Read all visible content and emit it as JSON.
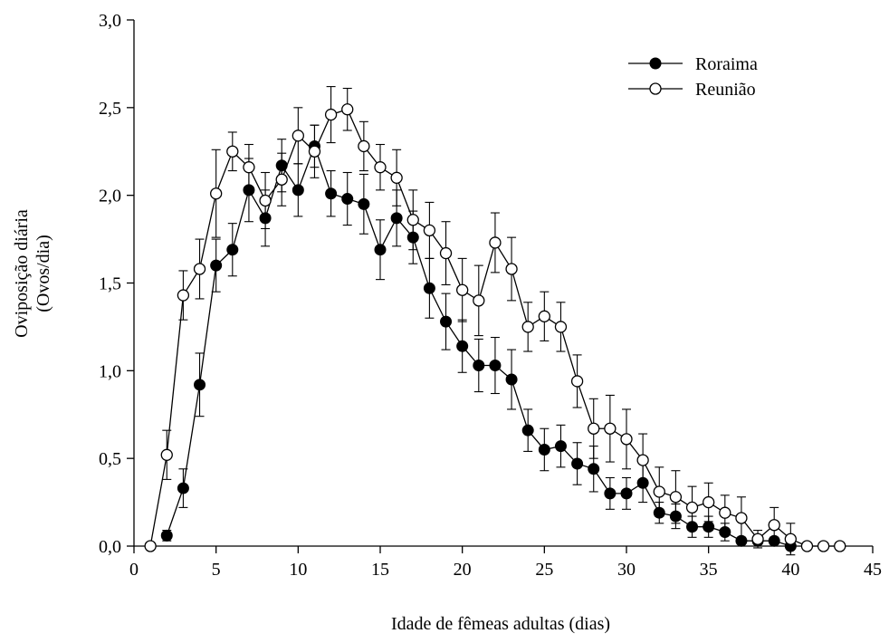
{
  "chart_data": {
    "type": "line",
    "title": "",
    "xlabel": "Idade de fêmeas adultas (dias)",
    "ylabel_line1": "Oviposição diária",
    "ylabel_line2": "(Ovos/dia)",
    "xlim": [
      0,
      45
    ],
    "ylim": [
      0,
      3.0
    ],
    "x_ticks": [
      0,
      5,
      10,
      15,
      20,
      25,
      30,
      35,
      40,
      45
    ],
    "x_tick_labels": [
      "0",
      "5",
      "10",
      "15",
      "20",
      "25",
      "30",
      "35",
      "40",
      "45"
    ],
    "y_ticks": [
      0,
      0.5,
      1.0,
      1.5,
      2.0,
      2.5,
      3.0
    ],
    "y_tick_labels": [
      "0,0",
      "0,5",
      "1,0",
      "1,5",
      "2,0",
      "2,5",
      "3,0"
    ],
    "grid": false,
    "legend_position": "top-right",
    "series": [
      {
        "name": "Roraima",
        "marker": "filled-circle",
        "x": [
          2,
          3,
          4,
          5,
          6,
          7,
          8,
          9,
          10,
          11,
          12,
          13,
          14,
          15,
          16,
          17,
          18,
          19,
          20,
          21,
          22,
          23,
          24,
          25,
          26,
          27,
          28,
          29,
          30,
          31,
          32,
          33,
          34,
          35,
          36,
          37,
          38,
          39,
          40
        ],
        "y": [
          0.06,
          0.33,
          0.92,
          1.6,
          1.69,
          2.03,
          1.87,
          2.17,
          2.03,
          2.28,
          2.01,
          1.98,
          1.95,
          1.69,
          1.87,
          1.76,
          1.47,
          1.28,
          1.14,
          1.03,
          1.03,
          0.95,
          0.66,
          0.55,
          0.57,
          0.47,
          0.44,
          0.3,
          0.3,
          0.36,
          0.19,
          0.17,
          0.11,
          0.11,
          0.08,
          0.03,
          0.03,
          0.03,
          0.0
        ],
        "err": [
          0.03,
          0.11,
          0.18,
          0.15,
          0.15,
          0.18,
          0.16,
          0.15,
          0.15,
          0.12,
          0.13,
          0.15,
          0.17,
          0.17,
          0.16,
          0.15,
          0.17,
          0.16,
          0.15,
          0.15,
          0.16,
          0.17,
          0.12,
          0.12,
          0.12,
          0.12,
          0.13,
          0.09,
          0.09,
          0.11,
          0.06,
          0.07,
          0.06,
          0.06,
          0.05,
          0.02,
          0.02,
          0.02,
          0.0
        ]
      },
      {
        "name": "Reunião",
        "marker": "open-circle",
        "x": [
          1,
          2,
          3,
          4,
          5,
          6,
          7,
          8,
          9,
          10,
          11,
          12,
          13,
          14,
          15,
          16,
          17,
          18,
          19,
          20,
          21,
          22,
          23,
          24,
          25,
          26,
          27,
          28,
          29,
          30,
          31,
          32,
          33,
          34,
          35,
          36,
          37,
          38,
          39,
          40,
          41,
          42,
          43
        ],
        "y": [
          0.0,
          0.52,
          1.43,
          1.58,
          2.01,
          2.25,
          2.16,
          1.97,
          2.09,
          2.34,
          2.25,
          2.46,
          2.49,
          2.28,
          2.16,
          2.1,
          1.86,
          1.8,
          1.67,
          1.46,
          1.4,
          1.73,
          1.58,
          1.25,
          1.31,
          1.25,
          0.94,
          0.67,
          0.67,
          0.61,
          0.49,
          0.31,
          0.28,
          0.22,
          0.25,
          0.19,
          0.16,
          0.04,
          0.12,
          0.04,
          0.0,
          0.0,
          0.0
        ],
        "err": [
          0.0,
          0.14,
          0.14,
          0.17,
          0.25,
          0.11,
          0.13,
          0.16,
          0.15,
          0.16,
          0.15,
          0.16,
          0.12,
          0.14,
          0.13,
          0.16,
          0.17,
          0.16,
          0.18,
          0.18,
          0.2,
          0.17,
          0.18,
          0.14,
          0.14,
          0.14,
          0.15,
          0.17,
          0.19,
          0.17,
          0.15,
          0.14,
          0.15,
          0.12,
          0.11,
          0.1,
          0.12,
          0.05,
          0.1,
          0.09,
          0.0,
          0.0,
          0.0
        ]
      }
    ]
  }
}
